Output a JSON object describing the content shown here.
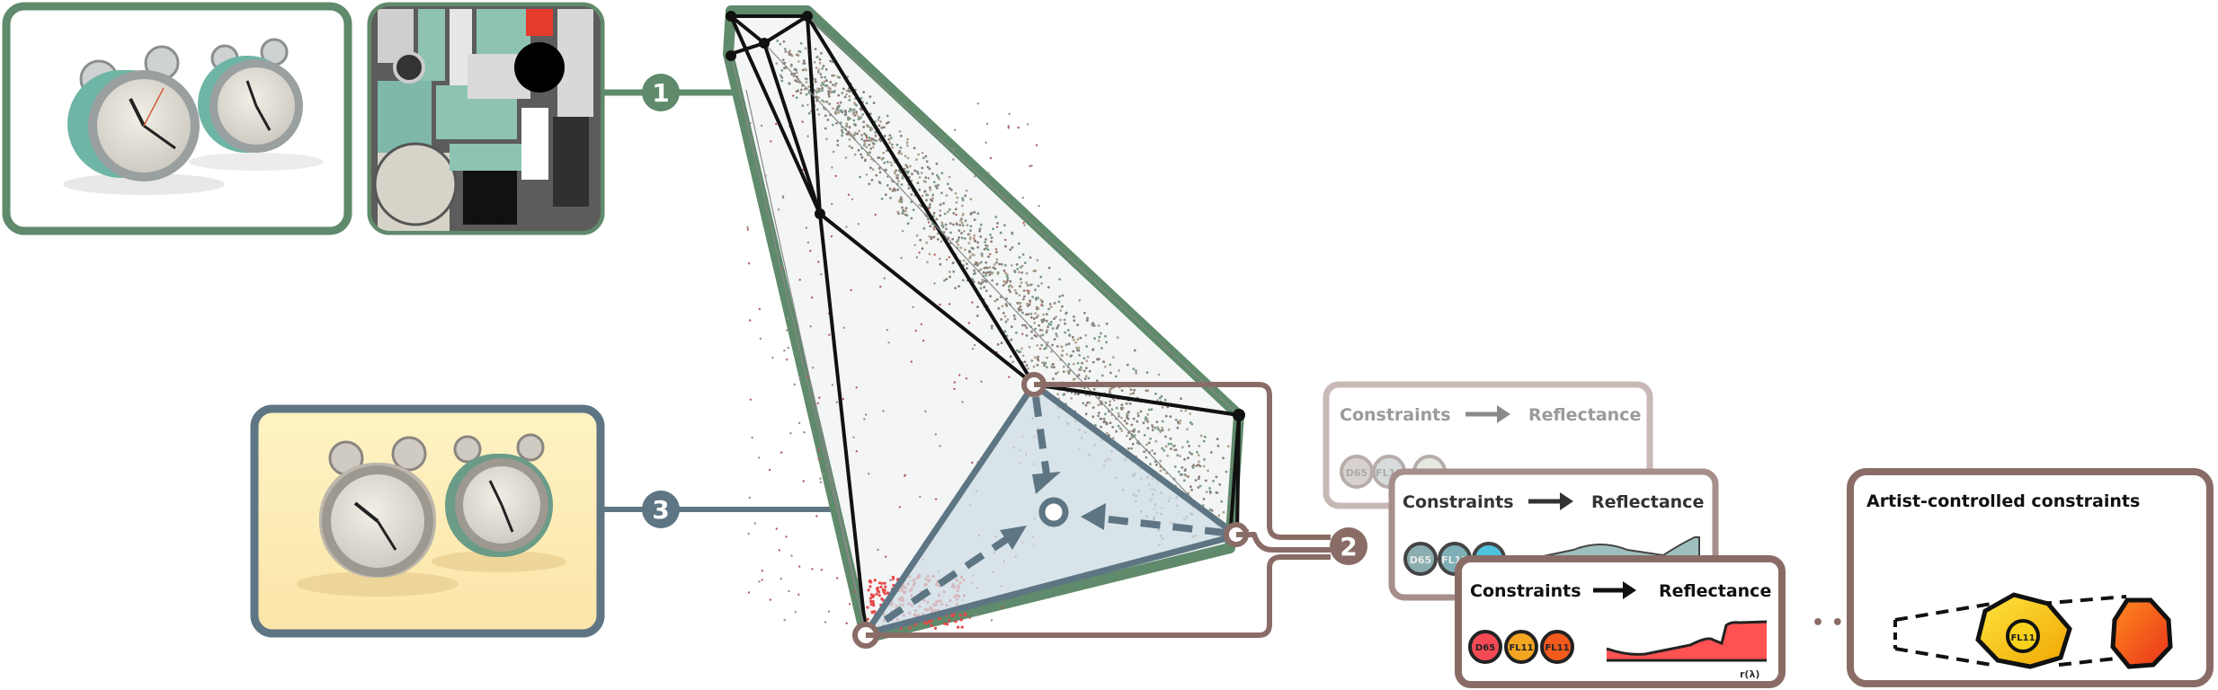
{
  "colors": {
    "green": "#5f8a6b",
    "slate": "#5e7584",
    "brown": "#8a6c67",
    "brown_faded": "#c8b9b7",
    "brown_mid": "#a68f8b",
    "hull_fill": "#f4f6f6",
    "inner_fill": "#d7e1e6",
    "red_spectrum": "#ff5252",
    "teal": "#6f9fa0",
    "d65": "#f44a55",
    "fl11": "#f4a623",
    "orange": "#f25a1e",
    "yellow": "#f6d21e"
  },
  "markers": {
    "m1": "1",
    "m2": "2",
    "m3": "3"
  },
  "cards": [
    {
      "title": "Constraints",
      "result": "Reflectance",
      "chips": [
        "D65",
        "FL11",
        ""
      ]
    },
    {
      "title": "Constraints",
      "result": "Reflectance",
      "chips": [
        "D65",
        "FL11",
        ""
      ]
    },
    {
      "title": "Constraints",
      "result": "Reflectance",
      "chips": [
        "D65",
        "FL11",
        "FL11"
      ],
      "axis_label": "r(λ)"
    }
  ],
  "ellipsis": "• • •",
  "artist_box": {
    "title": "Artist-controlled constraints",
    "chip": "FL11"
  },
  "images": {
    "render_top": "alarm-clock-render-white-background",
    "texture_top": "alarm-clock-texture-atlas",
    "render_bottom": "alarm-clock-render-warm-background"
  }
}
